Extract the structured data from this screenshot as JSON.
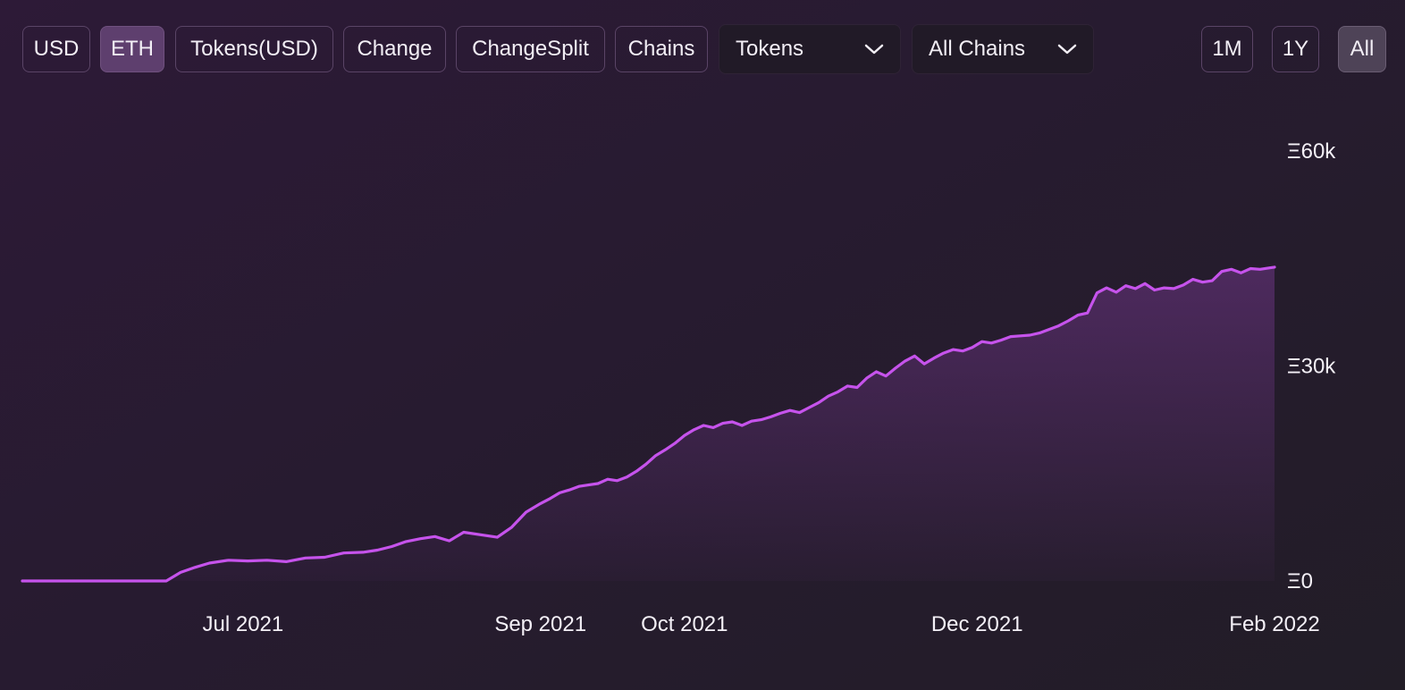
{
  "toolbar": {
    "denomination_buttons": [
      "USD",
      "ETH",
      "Tokens(USD)",
      "Change",
      "ChangeSplit",
      "Chains"
    ],
    "active_denomination": "ETH",
    "tokens_select": "Tokens",
    "chains_select": "All Chains",
    "range_buttons": [
      "1M",
      "1Y",
      "All"
    ],
    "active_range": "All"
  },
  "colors": {
    "line": "#c653ec",
    "fill": "#8a3fa8",
    "active_button": "#5e3f6e"
  },
  "chart_data": {
    "type": "area",
    "title": "",
    "xlabel": "",
    "ylabel": "",
    "ylim": [
      0,
      60000
    ],
    "y_ticks": [
      "Ξ0",
      "Ξ30k",
      "Ξ60k"
    ],
    "x_ticks": [
      "Jul 2021",
      "Sep 2021",
      "Oct 2021",
      "Dec 2021",
      "Feb 2022"
    ],
    "grid": false,
    "series": [
      {
        "x": [
          "2021-05-16",
          "2021-06-01",
          "2021-06-15",
          "2021-06-18",
          "2021-06-21",
          "2021-06-24",
          "2021-06-28",
          "2021-07-02",
          "2021-07-06",
          "2021-07-10",
          "2021-07-14",
          "2021-07-18",
          "2021-07-22",
          "2021-07-26",
          "2021-07-29",
          "2021-08-01",
          "2021-08-04",
          "2021-08-07",
          "2021-08-10",
          "2021-08-13",
          "2021-08-16",
          "2021-08-20",
          "2021-08-23",
          "2021-08-26",
          "2021-08-29",
          "2021-09-01",
          "2021-09-03",
          "2021-09-05",
          "2021-09-07",
          "2021-09-09",
          "2021-09-11",
          "2021-09-13",
          "2021-09-15",
          "2021-09-17",
          "2021-09-19",
          "2021-09-21",
          "2021-09-23",
          "2021-09-25",
          "2021-09-27",
          "2021-09-29",
          "2021-10-01",
          "2021-10-03",
          "2021-10-05",
          "2021-10-07",
          "2021-10-09",
          "2021-10-11",
          "2021-10-13",
          "2021-10-15",
          "2021-10-17",
          "2021-10-19",
          "2021-10-21",
          "2021-10-23",
          "2021-10-25",
          "2021-10-27",
          "2021-10-29",
          "2021-10-31",
          "2021-11-02",
          "2021-11-04",
          "2021-11-06",
          "2021-11-08",
          "2021-11-10",
          "2021-11-12",
          "2021-11-14",
          "2021-11-16",
          "2021-11-18",
          "2021-11-20",
          "2021-11-22",
          "2021-11-24",
          "2021-11-26",
          "2021-11-28",
          "2021-11-30",
          "2021-12-02",
          "2021-12-04",
          "2021-12-06",
          "2021-12-08",
          "2021-12-10",
          "2021-12-12",
          "2021-12-14",
          "2021-12-16",
          "2021-12-18",
          "2021-12-20",
          "2021-12-22",
          "2021-12-24",
          "2021-12-26",
          "2021-12-28",
          "2021-12-30",
          "2022-01-01",
          "2022-01-03",
          "2022-01-05",
          "2022-01-07",
          "2022-01-09",
          "2022-01-11",
          "2022-01-13",
          "2022-01-15",
          "2022-01-17",
          "2022-01-19",
          "2022-01-21",
          "2022-01-23",
          "2022-01-25",
          "2022-01-27",
          "2022-01-29",
          "2022-01-31",
          "2022-02-01"
        ],
        "values": [
          0,
          0,
          0,
          1200,
          1900,
          2500,
          2900,
          2800,
          2900,
          2700,
          3200,
          3300,
          3900,
          4000,
          4300,
          4800,
          5500,
          5900,
          6200,
          5600,
          6800,
          6400,
          6100,
          7500,
          9600,
          10800,
          11500,
          12300,
          12700,
          13200,
          13400,
          13600,
          14200,
          14000,
          14500,
          15300,
          16300,
          17500,
          18300,
          19200,
          20300,
          21100,
          21700,
          21400,
          22000,
          22200,
          21700,
          22300,
          22500,
          22900,
          23400,
          23800,
          23500,
          24200,
          24900,
          25800,
          26400,
          27200,
          27000,
          28300,
          29200,
          28600,
          29700,
          30700,
          31400,
          30300,
          31100,
          31800,
          32300,
          32100,
          32600,
          33400,
          33200,
          33600,
          34100,
          34200,
          34300,
          34600,
          35100,
          35600,
          36300,
          37100,
          37400,
          40200,
          40900,
          40300,
          41200,
          40800,
          41500,
          40600,
          40900,
          40800,
          41300,
          42100,
          41700,
          41900,
          43200,
          43500,
          43000,
          43600,
          43500,
          43700,
          43800
        ]
      }
    ]
  }
}
